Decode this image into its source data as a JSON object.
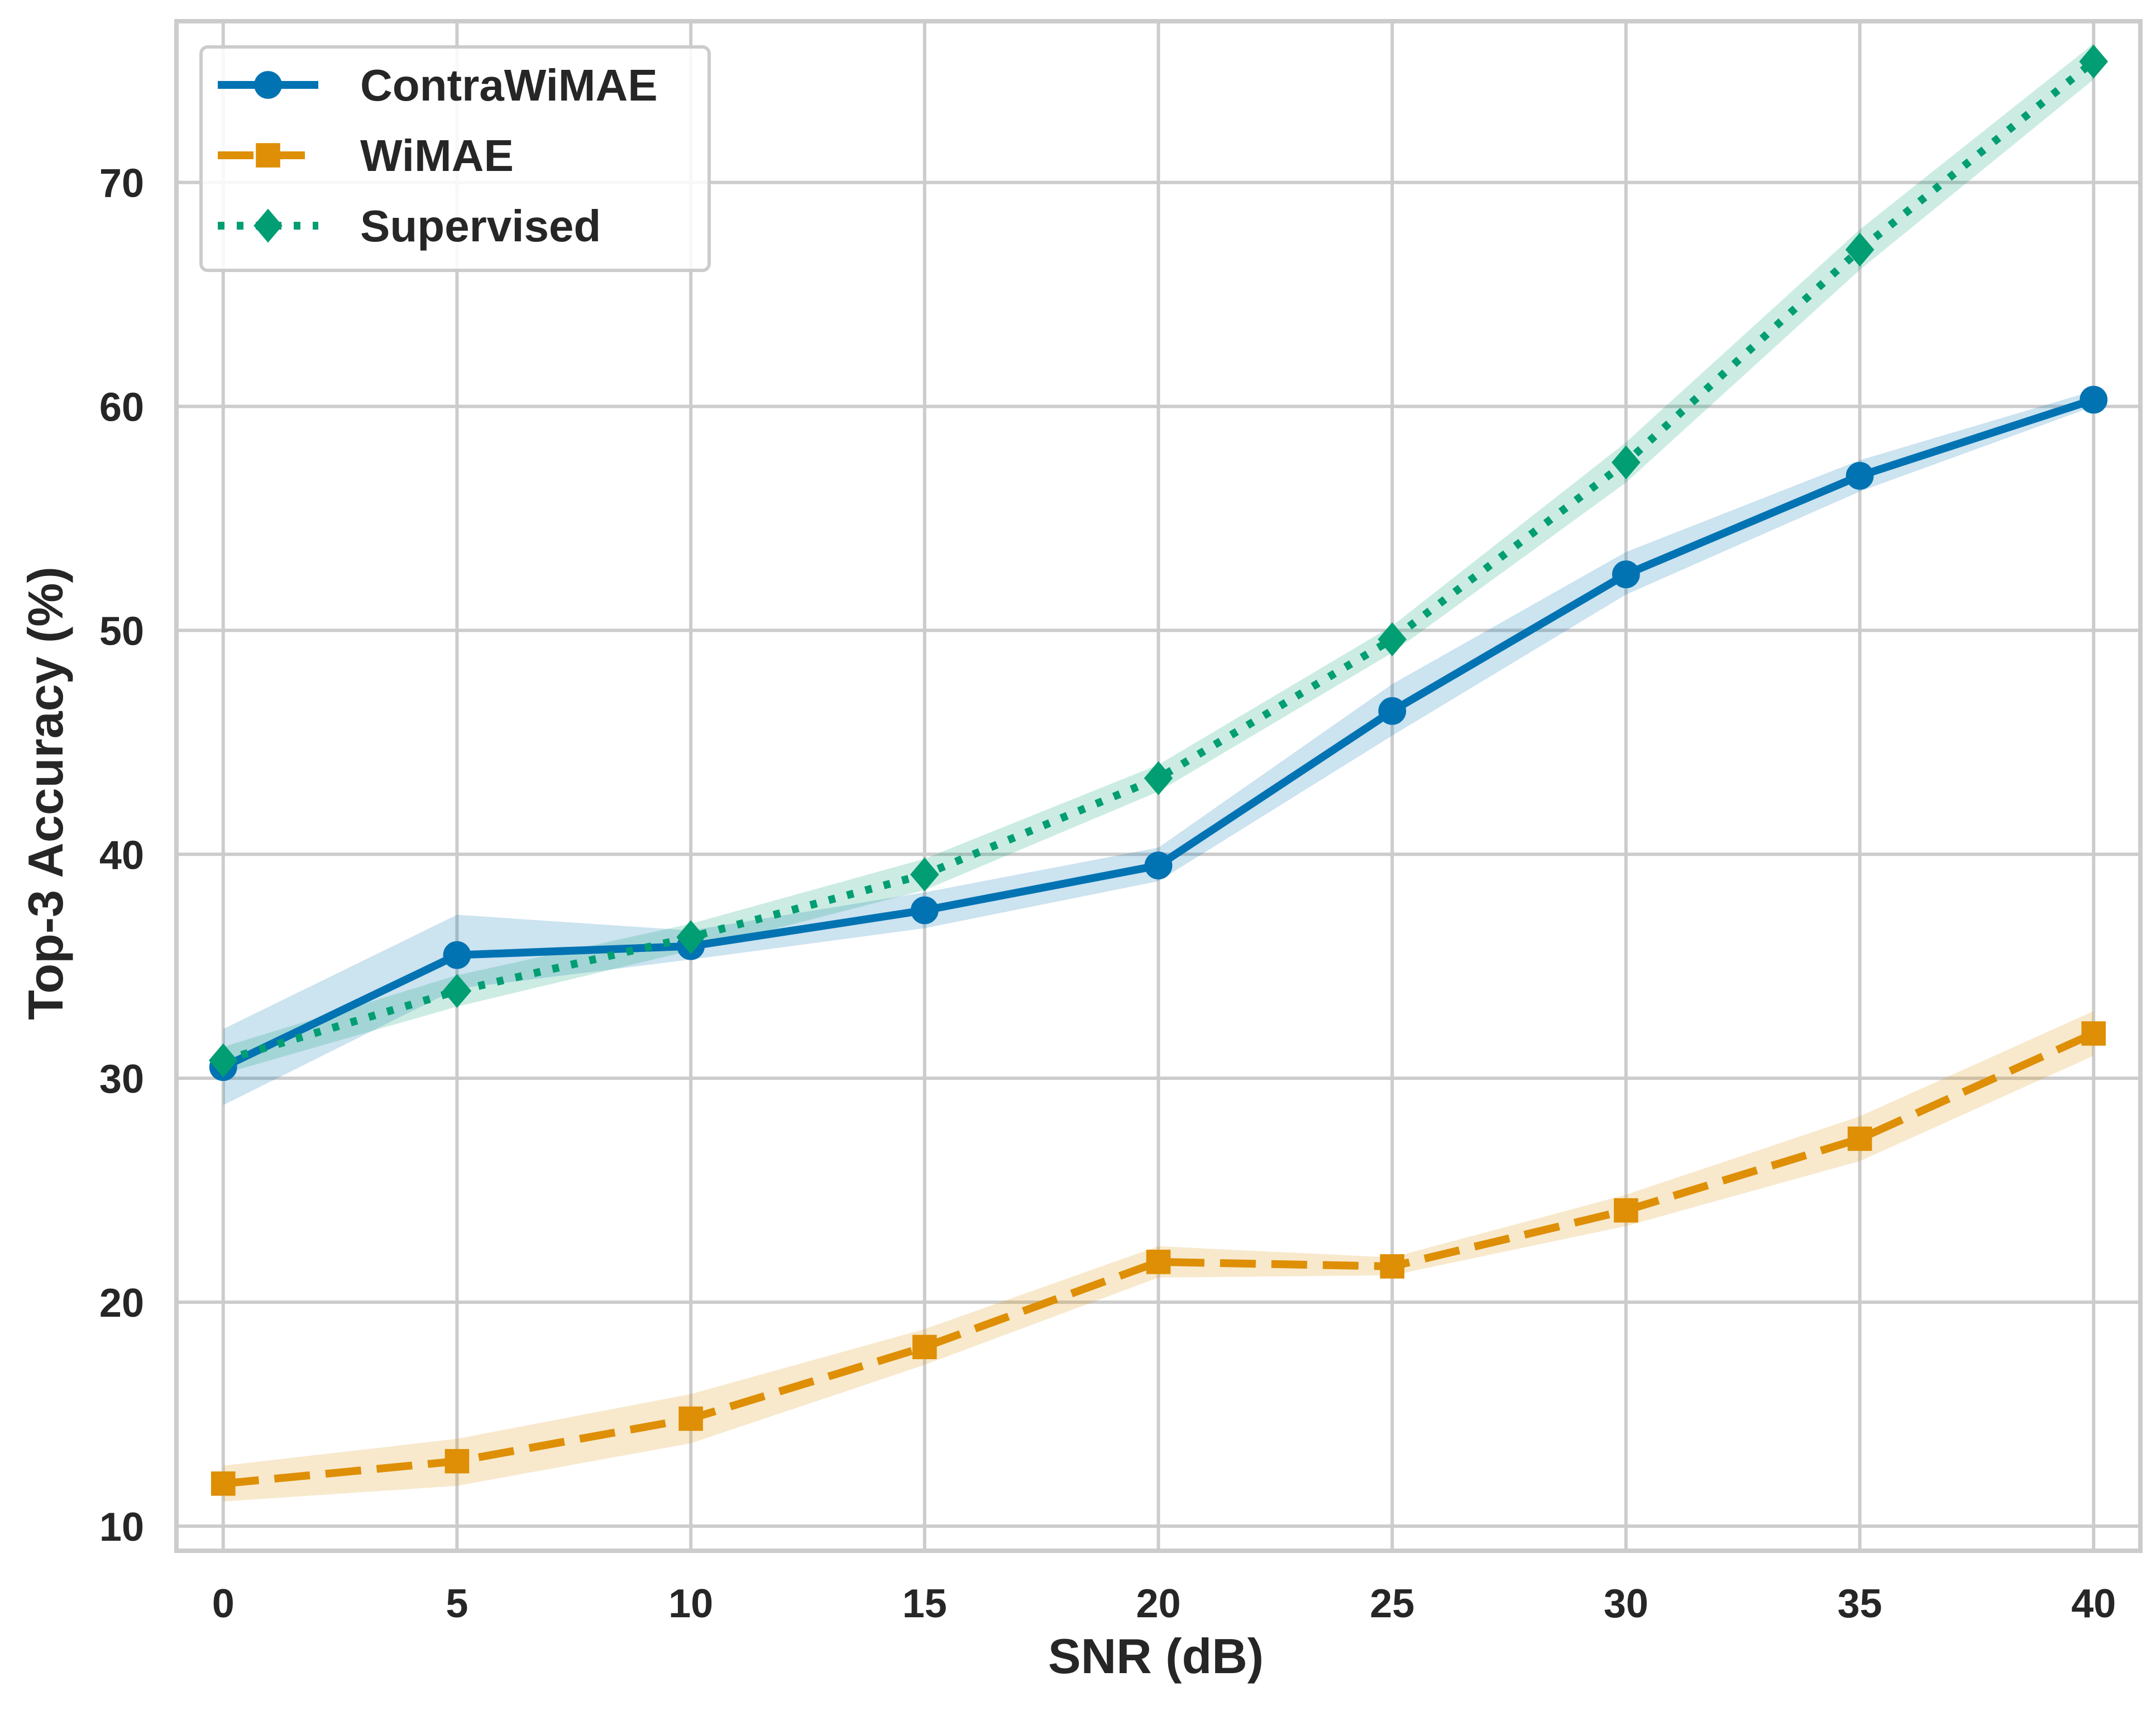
{
  "chart_data": {
    "type": "line",
    "title": "",
    "xlabel": "SNR (dB)",
    "ylabel": "Top-3 Accuracy (%)",
    "x": [
      0,
      5,
      10,
      15,
      20,
      25,
      30,
      35,
      40
    ],
    "xticks": [
      "0",
      "5",
      "10",
      "15",
      "20",
      "25",
      "30",
      "35",
      "40"
    ],
    "yticks": [
      "10",
      "20",
      "30",
      "40",
      "50",
      "60",
      "70"
    ],
    "xlim": [
      -1,
      41
    ],
    "ylim": [
      8.9,
      77.2
    ],
    "grid": true,
    "legend_position": "top-left",
    "series": [
      {
        "name": "ContraWiMAE",
        "color": "#0173b2",
        "line_style": "solid",
        "marker": "circle",
        "values": [
          30.5,
          35.5,
          35.9,
          37.5,
          39.5,
          46.4,
          52.5,
          56.9,
          60.3
        ],
        "lower": [
          28.8,
          34.0,
          35.3,
          36.7,
          38.8,
          45.3,
          51.6,
          56.2,
          60.0
        ],
        "upper": [
          32.2,
          37.3,
          36.6,
          38.3,
          40.3,
          47.6,
          53.5,
          57.6,
          60.7
        ]
      },
      {
        "name": "WiMAE",
        "color": "#de8f05",
        "line_style": "dashed",
        "marker": "square",
        "values": [
          11.9,
          12.9,
          14.8,
          18.0,
          21.8,
          21.6,
          24.1,
          27.3,
          32.0
        ],
        "lower": [
          11.1,
          11.8,
          13.7,
          17.2,
          21.1,
          21.2,
          23.4,
          26.3,
          31.0
        ],
        "upper": [
          12.7,
          13.9,
          15.9,
          18.8,
          22.5,
          22.0,
          24.8,
          28.3,
          33.0
        ]
      },
      {
        "name": "Supervised",
        "color": "#029e73",
        "line_style": "dotted",
        "marker": "diamond",
        "values": [
          30.8,
          33.9,
          36.3,
          39.1,
          43.4,
          49.6,
          57.5,
          67.0,
          75.4
        ],
        "lower": [
          30.2,
          33.2,
          35.7,
          38.4,
          42.8,
          49.0,
          56.6,
          66.1,
          74.6
        ],
        "upper": [
          31.4,
          34.6,
          36.9,
          39.8,
          44.0,
          50.2,
          58.4,
          67.9,
          76.2
        ]
      }
    ]
  }
}
